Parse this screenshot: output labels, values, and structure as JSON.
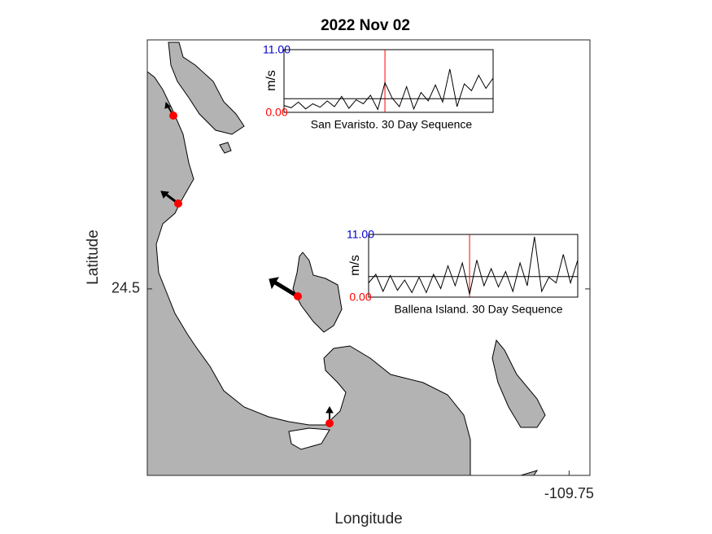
{
  "map": {
    "title": "2022 Nov 02",
    "xlabel": "Longitude",
    "ylabel": "Latitude",
    "xlim": [
      -110.56,
      -109.71
    ],
    "ylim": [
      24.136,
      24.986
    ],
    "xticks": [
      -109.75
    ],
    "yticks": [
      24.5
    ],
    "insets": [
      {
        "caption": "San Evaristo. 30 Day Sequence",
        "ylabel": "m/s",
        "ylim": [
          0,
          11
        ],
        "yticks": [
          {
            "value": 0,
            "label": "0.00"
          },
          {
            "value": 11,
            "label": "11.00"
          }
        ],
        "color": "#000000",
        "marker_color": "#ff0000",
        "current_day_index": 14,
        "reference": 2.4,
        "values": [
          1.2,
          0.8,
          1.8,
          0.6,
          1.5,
          0.9,
          2.0,
          1.0,
          2.8,
          0.7,
          2.2,
          1.5,
          3.0,
          0.5,
          5.2,
          2.5,
          1.0,
          4.5,
          0.6,
          3.5,
          2.0,
          4.8,
          1.8,
          7.6,
          1.0,
          5.0,
          3.8,
          6.5,
          4.2,
          6.0
        ]
      },
      {
        "caption": "Ballena Island. 30 Day Sequence",
        "ylabel": "m/s",
        "ylim": [
          0,
          11
        ],
        "yticks": [
          {
            "value": 0,
            "label": "0.00"
          },
          {
            "value": 11,
            "label": "11.00"
          }
        ],
        "color": "#000000",
        "marker_color": "#ff0000",
        "current_day_index": 14,
        "reference": 3.6,
        "values": [
          2.5,
          4.0,
          1.0,
          3.8,
          1.2,
          3.0,
          0.8,
          3.5,
          0.8,
          4.0,
          1.5,
          5.5,
          2.0,
          6.0,
          0.5,
          6.5,
          2.0,
          5.0,
          1.8,
          4.5,
          1.0,
          6.0,
          2.0,
          10.6,
          1.0,
          3.5,
          2.5,
          7.5,
          2.5,
          6.5
        ]
      }
    ]
  }
}
